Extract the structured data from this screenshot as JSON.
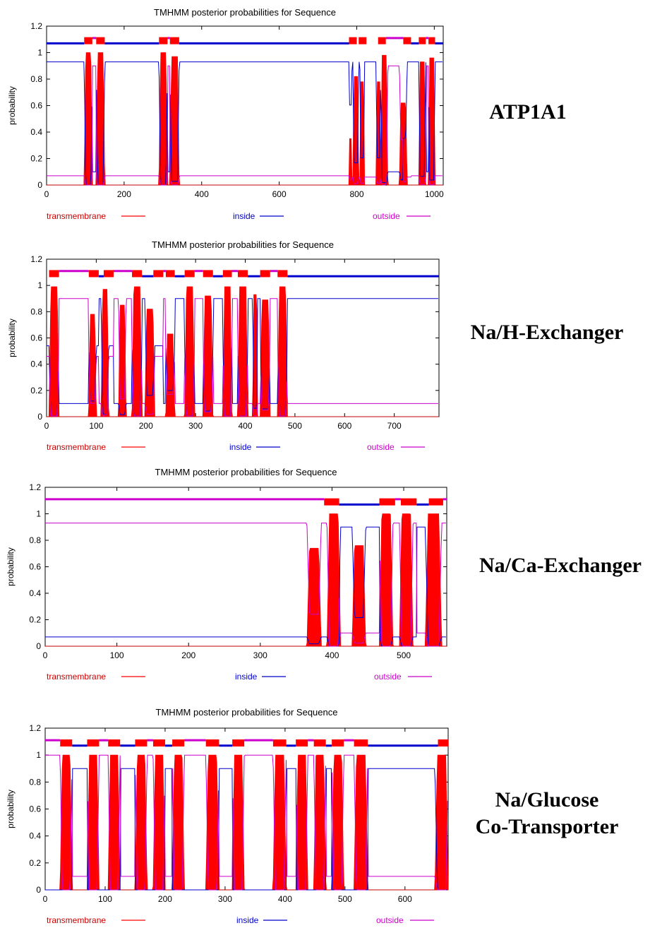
{
  "legend": {
    "transmembrane": "transmembrane",
    "inside": "inside",
    "outside": "outside"
  },
  "colors": {
    "transmembrane": "#ff0000",
    "inside": "#0000cc",
    "outside": "#cc00cc"
  },
  "chart_data": [
    {
      "type": "area",
      "title": "TMHMM posterior probabilities for Sequence",
      "ylabel": "probability",
      "protein_label": [
        "ATP1A1"
      ],
      "xlim": [
        0,
        1023
      ],
      "ylim": [
        0,
        1.2
      ],
      "xticks": [
        0,
        200,
        400,
        600,
        800,
        1000
      ],
      "yticks": [
        0,
        0.2,
        0.4,
        0.6,
        0.8,
        1,
        1.2
      ],
      "tm_peaks": [
        [
          97,
          118,
          1.0
        ],
        [
          128,
          150,
          1.0
        ],
        [
          290,
          312,
          1.0
        ],
        [
          318,
          342,
          0.97
        ],
        [
          780,
          788,
          0.35
        ],
        [
          790,
          805,
          0.82
        ],
        [
          808,
          820,
          0.78
        ],
        [
          850,
          862,
          0.78
        ],
        [
          862,
          880,
          0.98
        ],
        [
          910,
          930,
          0.62
        ],
        [
          960,
          978,
          0.93
        ],
        [
          985,
          1002,
          0.96
        ]
      ],
      "topology_bars": {
        "tm": [
          [
            97,
            118
          ],
          [
            128,
            150
          ],
          [
            290,
            312
          ],
          [
            318,
            342
          ],
          [
            780,
            800
          ],
          [
            805,
            825
          ],
          [
            855,
            875
          ],
          [
            920,
            940
          ],
          [
            960,
            978
          ],
          [
            985,
            1002
          ]
        ],
        "inside": [
          [
            0,
            97
          ],
          [
            150,
            290
          ],
          [
            342,
            780
          ],
          [
            940,
            960
          ],
          [
            1002,
            1023
          ]
        ],
        "outside": [
          [
            118,
            128
          ],
          [
            312,
            318
          ],
          [
            875,
            920
          ],
          [
            978,
            985
          ]
        ]
      },
      "inside_level": 0.93,
      "outside_level": 0.06
    },
    {
      "type": "area",
      "title": "TMHMM posterior probabilities for Sequence",
      "ylabel": "probability",
      "protein_label": [
        "Na/H-Exchanger"
      ],
      "xlim": [
        0,
        790
      ],
      "ylim": [
        0,
        1.2
      ],
      "xticks": [
        0,
        100,
        200,
        300,
        400,
        500,
        600,
        700
      ],
      "yticks": [
        0,
        0.2,
        0.4,
        0.6,
        0.8,
        1,
        1.2
      ],
      "tm_peaks": [
        [
          5,
          25,
          0.99
        ],
        [
          85,
          100,
          0.78
        ],
        [
          110,
          125,
          0.97
        ],
        [
          145,
          160,
          0.85
        ],
        [
          172,
          192,
          0.99
        ],
        [
          198,
          218,
          0.82
        ],
        [
          240,
          258,
          0.63
        ],
        [
          278,
          298,
          0.99
        ],
        [
          315,
          335,
          0.92
        ],
        [
          355,
          373,
          0.99
        ],
        [
          385,
          405,
          0.99
        ],
        [
          415,
          425,
          0.93
        ],
        [
          430,
          450,
          0.89
        ],
        [
          465,
          485,
          0.99
        ]
      ],
      "topology_bars": {
        "tm": [
          [
            5,
            25
          ],
          [
            85,
            105
          ],
          [
            115,
            135
          ],
          [
            172,
            192
          ],
          [
            215,
            235
          ],
          [
            240,
            258
          ],
          [
            278,
            298
          ],
          [
            315,
            335
          ],
          [
            355,
            373
          ],
          [
            385,
            405
          ],
          [
            430,
            450
          ],
          [
            465,
            485
          ]
        ],
        "inside": [
          [
            105,
            115
          ],
          [
            192,
            215
          ],
          [
            258,
            278
          ],
          [
            335,
            355
          ],
          [
            405,
            430
          ],
          [
            485,
            790
          ]
        ],
        "outside": [
          [
            25,
            85
          ],
          [
            135,
            172
          ],
          [
            235,
            240
          ],
          [
            298,
            315
          ],
          [
            373,
            385
          ],
          [
            450,
            465
          ]
        ]
      },
      "inside_level": 0.54,
      "outside_level": 0.46
    },
    {
      "type": "area",
      "title": "TMHMM posterior probabilities for Sequence",
      "ylabel": "probability",
      "protein_label": [
        "Na/Ca-Exchanger"
      ],
      "xlim": [
        0,
        560
      ],
      "ylim": [
        0,
        1.2
      ],
      "xticks": [
        0,
        100,
        200,
        300,
        400,
        500
      ],
      "yticks": [
        0,
        0.2,
        0.4,
        0.6,
        0.8,
        1,
        1.2
      ],
      "tm_peaks": [
        [
          365,
          385,
          0.74
        ],
        [
          393,
          412,
          1.0
        ],
        [
          428,
          447,
          0.76
        ],
        [
          466,
          485,
          1.0
        ],
        [
          494,
          513,
          1.0
        ],
        [
          530,
          553,
          1.0
        ]
      ],
      "topology_bars": {
        "tm": [
          [
            389,
            410
          ],
          [
            466,
            488
          ],
          [
            496,
            518
          ],
          [
            535,
            555
          ]
        ],
        "inside": [
          [
            410,
            466
          ],
          [
            518,
            535
          ]
        ],
        "outside": [
          [
            0,
            389
          ],
          [
            488,
            496
          ],
          [
            555,
            560
          ]
        ]
      },
      "inside_level": 0.07,
      "outside_level": 0.93
    },
    {
      "type": "area",
      "title": "TMHMM posterior probabilities for Sequence",
      "ylabel": "probability",
      "protein_label": [
        "Na/Glucose",
        "Co-Transporter"
      ],
      "xlim": [
        0,
        672
      ],
      "ylim": [
        0,
        1.2
      ],
      "xticks": [
        0,
        100,
        200,
        300,
        400,
        500,
        600
      ],
      "yticks": [
        0,
        0.2,
        0.4,
        0.6,
        0.8,
        1,
        1.2
      ],
      "tm_peaks": [
        [
          25,
          45,
          1.0
        ],
        [
          70,
          90,
          1.0
        ],
        [
          105,
          125,
          1.0
        ],
        [
          150,
          170,
          1.0
        ],
        [
          180,
          200,
          1.0
        ],
        [
          212,
          232,
          1.0
        ],
        [
          268,
          290,
          1.0
        ],
        [
          312,
          332,
          1.0
        ],
        [
          380,
          402,
          1.0
        ],
        [
          418,
          438,
          1.0
        ],
        [
          448,
          468,
          1.0
        ],
        [
          478,
          498,
          1.0
        ],
        [
          515,
          538,
          1.0
        ],
        [
          650,
          672,
          1.0
        ]
      ],
      "topology_bars": {
        "tm": [
          [
            25,
            45
          ],
          [
            70,
            90
          ],
          [
            105,
            125
          ],
          [
            150,
            170
          ],
          [
            180,
            200
          ],
          [
            212,
            232
          ],
          [
            268,
            290
          ],
          [
            312,
            332
          ],
          [
            380,
            402
          ],
          [
            418,
            438
          ],
          [
            448,
            468
          ],
          [
            478,
            498
          ],
          [
            515,
            538
          ],
          [
            655,
            672
          ]
        ],
        "inside": [
          [
            45,
            70
          ],
          [
            125,
            150
          ],
          [
            200,
            212
          ],
          [
            290,
            312
          ],
          [
            402,
            418
          ],
          [
            468,
            478
          ],
          [
            538,
            655
          ]
        ],
        "outside": [
          [
            0,
            25
          ],
          [
            90,
            105
          ],
          [
            170,
            180
          ],
          [
            232,
            268
          ],
          [
            332,
            380
          ],
          [
            438,
            448
          ],
          [
            498,
            515
          ]
        ]
      },
      "inside_level": 0.0,
      "outside_level": 1.0
    }
  ]
}
